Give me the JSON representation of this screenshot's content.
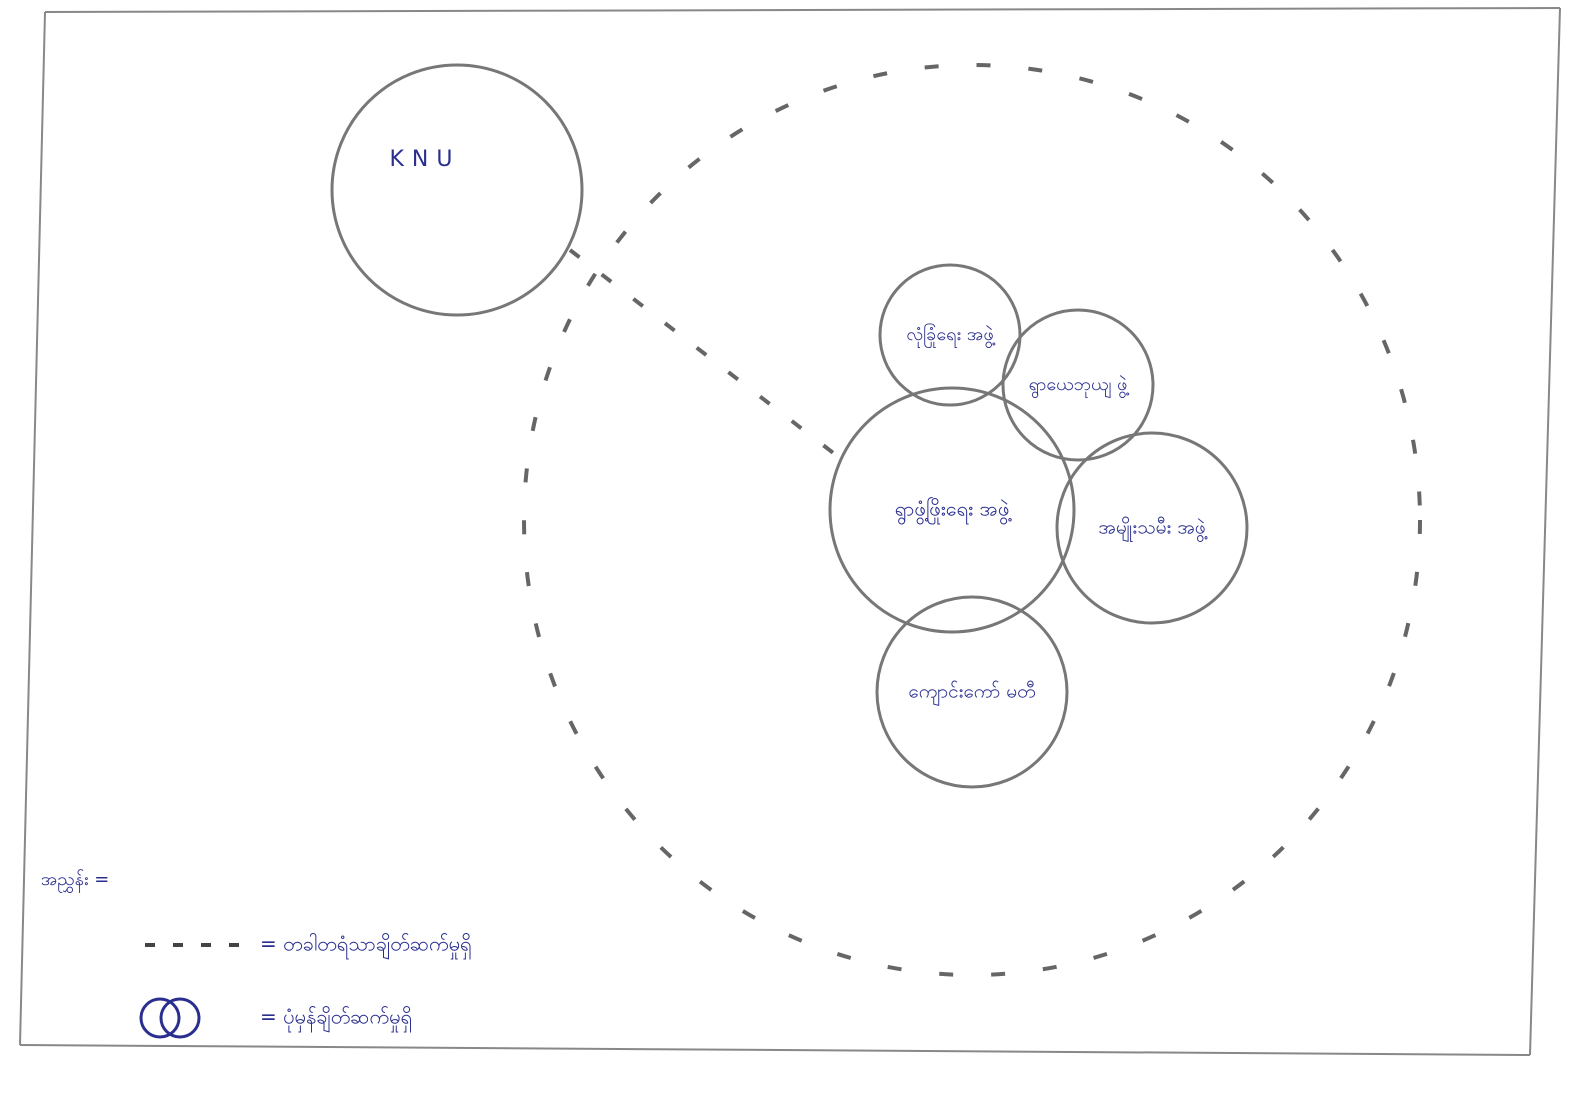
{
  "nodes": [
    {
      "label": "KNU"
    },
    {
      "label": "လုံခြုံရေး အဖွဲ့"
    },
    {
      "label": "ရွာယေဘုယျ ဖွဲ့"
    },
    {
      "label": "ရွာဖွံ့ဖြိုးရေး အဖွဲ့"
    },
    {
      "label": "အမျိုးသမီး အဖွဲ့"
    },
    {
      "label": "ကျောင်းကော် မတီ"
    }
  ],
  "legend": {
    "title": "အညွှန်း =",
    "items": [
      {
        "label": "= တခါတရံသာချိတ်ဆက်မှုရှိ"
      },
      {
        "label": "= ပုံမှန်ချိတ်ဆက်မှုရှိ"
      }
    ]
  }
}
